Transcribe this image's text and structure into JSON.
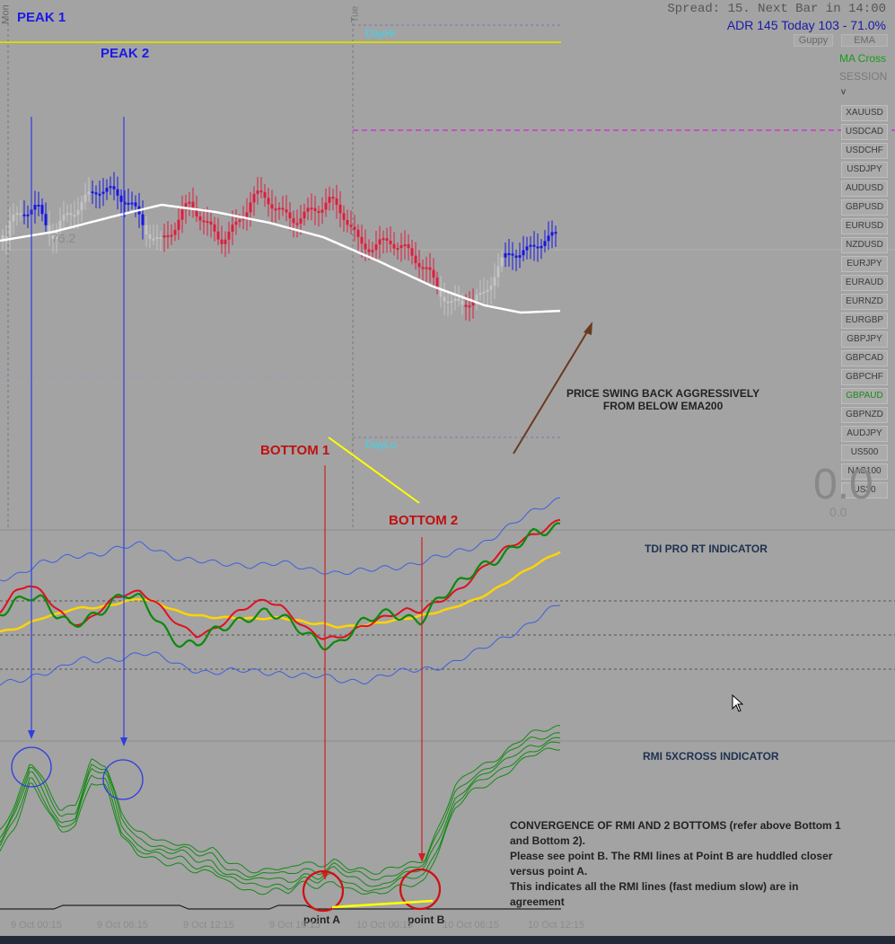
{
  "header": {
    "spread_text": "Spread: 15. Next Bar in 14:00",
    "adr_text": "ADR 145  Today 103 - 71.0%",
    "day_label_mon": "Mon",
    "day_label_tue": "Tue"
  },
  "toolbar": {
    "guppy": "Guppy",
    "ema": "EMA",
    "ma_cross": "MA Cross",
    "session": "SESSION",
    "chevron": "v"
  },
  "symbols": [
    "XAUUSD",
    "USDCAD",
    "USDCHF",
    "USDJPY",
    "AUDUSD",
    "GBPUSD",
    "EURUSD",
    "NZDUSD",
    "EURJPY",
    "EURAUD",
    "EURNZD",
    "EURGBP",
    "GBPJPY",
    "GBPCAD",
    "GBPCHF",
    "GBPAUD",
    "GBPNZD",
    "AUDJPY",
    "US500",
    "NAS100",
    "US30"
  ],
  "active_symbol": "GBPAUD",
  "price_panel": {
    "dayhi_label": "DayHi",
    "daylo_label": "DayLo",
    "ema_label": "76.2",
    "big_number": "0.0",
    "small_number": "0.0"
  },
  "annotations": {
    "peak1": "PEAK 1",
    "peak2": "PEAK 2",
    "bottom1": "BOTTOM 1",
    "bottom2": "BOTTOM 2",
    "price_note_line1": "PRICE SWING BACK AGGRESSIVELY",
    "price_note_line2": "FROM BELOW EMA200",
    "tdi_title": "TDI PRO RT INDICATOR",
    "rmi_title": "RMI 5XCROSS INDICATOR",
    "conv_line1": "CONVERGENCE OF RMI AND 2 BOTTOMS (refer above Bottom 1",
    "conv_line2": "and Bottom 2).",
    "conv_line3": "Please see point B. The RMI lines at Point B are huddled closer",
    "conv_line4": "versus point A.",
    "conv_line5": "This indicates all the RMI lines (fast medium slow) are in",
    "conv_line6": "agreement",
    "point_a": "point A",
    "point_b": "point B"
  },
  "x_axis": [
    "9 Oct 00:15",
    "9 Oct 06:15",
    "9 Oct 12:15",
    "9 Oct 18:15",
    "10 Oct 00:15",
    "10 Oct 06:15",
    "10 Oct 12:15"
  ],
  "colors": {
    "background": "#a3a3a3",
    "bull_candle": "#1414e6",
    "bear_candle": "#dc1e3c",
    "neutral_candle": "#c4c4c4",
    "ema200": "#ffffff",
    "tdi_green": "#0a8a0a",
    "tdi_red": "#e01020",
    "tdi_yellow": "#ffd400",
    "tdi_band": "#3d5fe0",
    "rmi_green": "#138a13",
    "peak_label": "#1a1ae6",
    "bottom_label": "#c01010",
    "divergence_line": "#ffff00",
    "arrow_brown": "#6b3a1e"
  },
  "chart_data": [
    {
      "type": "line",
      "title": "",
      "series": [
        {
          "name": "",
          "values": [
            255,
            240,
            236,
            258,
            232,
            224,
            214,
            220,
            222,
            248,
            270,
            254,
            230,
            250,
            260,
            249,
            222,
            226,
            240,
            238,
            230,
            226,
            244,
            274,
            270,
            262,
            280,
            298,
            320,
            336,
            330,
            332,
            304,
            284,
            278,
            260,
            262
          ]
        }
      ],
      "x_labels": [
        "9 Oct 00:15",
        "9 Oct 06:15",
        "9 Oct 12:15",
        "9 Oct 18:15",
        "10 Oct 00:15",
        "10 Oct 06:15",
        "10 Oct 12:15"
      ],
      "annotations": [
        "PEAK 1",
        "PEAK 2",
        "BOTTOM 1",
        "BOTTOM 2"
      ]
    },
    {
      "type": "line",
      "title": "TDI PRO RT INDICATOR",
      "series": [
        {
          "name": "",
          "values": [
            52,
            62,
            66,
            60,
            48,
            42,
            48,
            54,
            60,
            64,
            60,
            50,
            38,
            30,
            28,
            34,
            40,
            46,
            52,
            54,
            48,
            40,
            34,
            30,
            30,
            38,
            44,
            48,
            52,
            50,
            48,
            58,
            66,
            74,
            86,
            92,
            96,
            102,
            108,
            112,
            118
          ]
        },
        {
          "name": "",
          "values": [
            54,
            66,
            72,
            66,
            56,
            46,
            44,
            52,
            60,
            66,
            68,
            62,
            50,
            40,
            34,
            38,
            46,
            54,
            58,
            60,
            56,
            48,
            40,
            34,
            32,
            36,
            42,
            48,
            52,
            54,
            52,
            58,
            64,
            72,
            82,
            90,
            98,
            104,
            110,
            116,
            122
          ]
        },
        {
          "name": "",
          "values": [
            38,
            40,
            44,
            48,
            50,
            54,
            56,
            56,
            58,
            60,
            62,
            60,
            56,
            52,
            50,
            48,
            48,
            48,
            48,
            48,
            48,
            46,
            44,
            44,
            42,
            42,
            42,
            44,
            46,
            48,
            50,
            52,
            54,
            58,
            62,
            68,
            74,
            80,
            86,
            92,
            98
          ]
        }
      ]
    },
    {
      "type": "line",
      "title": "RMI 5XCROSS INDICATOR",
      "series": [
        {
          "name": "",
          "values": [
            28,
            40,
            62,
            50,
            36,
            40,
            62,
            60,
            36,
            26,
            24,
            22,
            22,
            18,
            18,
            12,
            10,
            8,
            10,
            8,
            12,
            10,
            14,
            10,
            8,
            6,
            10,
            12,
            14,
            30,
            48,
            56,
            60,
            64,
            70,
            74,
            76,
            78
          ]
        }
      ],
      "annotations": [
        "point A",
        "point B"
      ]
    }
  ]
}
